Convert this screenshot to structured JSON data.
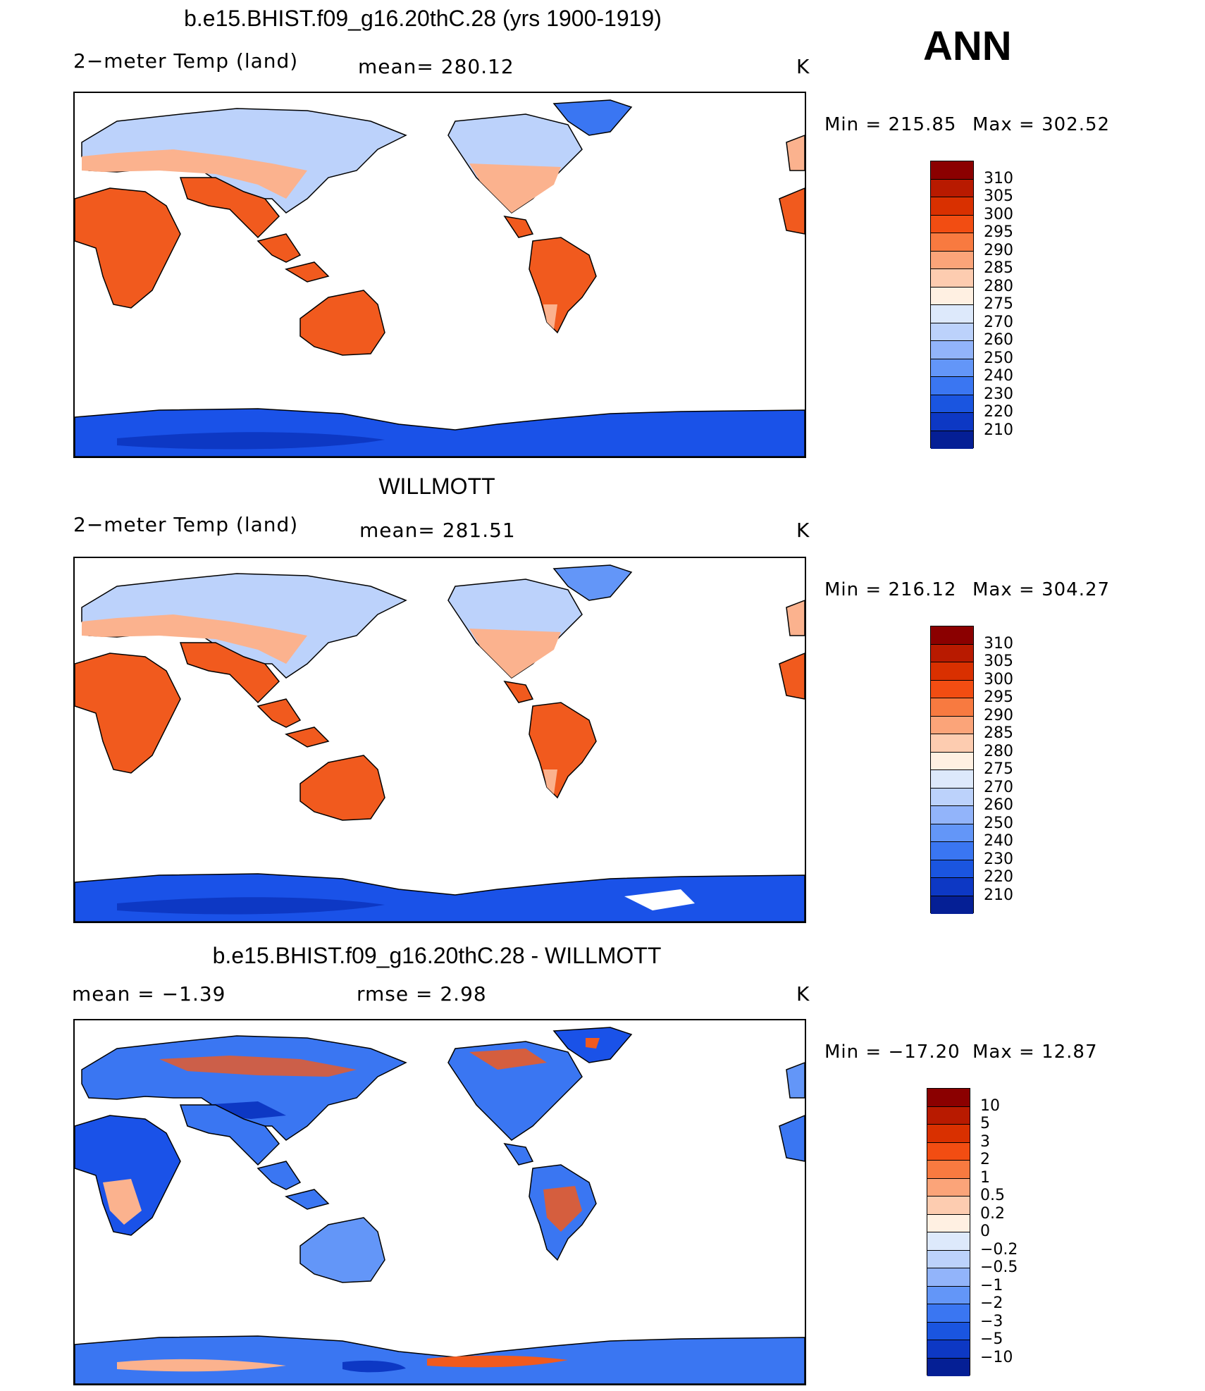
{
  "season": "ANN",
  "units_label": "K",
  "panel1": {
    "title": "b.e15.BHIST.f09_g16.20thC.28 (yrs 1900-1919)",
    "variable": "2−meter Temp (land)",
    "mean_text": "mean=  280.12",
    "min_text": "Min  =  215.85",
    "max_text": "Max  =  302.52",
    "colorbar_ticks": [
      "310",
      "305",
      "300",
      "295",
      "290",
      "285",
      "280",
      "275",
      "270",
      "260",
      "250",
      "240",
      "230",
      "220",
      "210"
    ],
    "colorbar_colors": [
      "#8b0000",
      "#b81a00",
      "#d93000",
      "#f24d12",
      "#f87a40",
      "#fba479",
      "#fdccb0",
      "#fff0e2",
      "#dde9fb",
      "#bcd2fb",
      "#92b4fa",
      "#6396f8",
      "#3a76f2",
      "#1a55e0",
      "#0d38c4",
      "#051f95"
    ]
  },
  "panel2": {
    "title": "WILLMOTT",
    "variable": "2−meter Temp (land)",
    "mean_text": "mean=  281.51",
    "min_text": "Min  =  216.12",
    "max_text": "Max  =  304.27",
    "colorbar_ticks": [
      "310",
      "305",
      "300",
      "295",
      "290",
      "285",
      "280",
      "275",
      "270",
      "260",
      "250",
      "240",
      "230",
      "220",
      "210"
    ],
    "colorbar_colors": [
      "#8b0000",
      "#b81a00",
      "#d93000",
      "#f24d12",
      "#f87a40",
      "#fba479",
      "#fdccb0",
      "#fff0e2",
      "#dde9fb",
      "#bcd2fb",
      "#92b4fa",
      "#6396f8",
      "#3a76f2",
      "#1a55e0",
      "#0d38c4",
      "#051f95"
    ]
  },
  "panel3": {
    "title": "b.e15.BHIST.f09_g16.20thC.28 - WILLMOTT",
    "mean_text": "mean  =     −1.39",
    "rmse_text": "rmse  =      2.98",
    "min_text": "Min  =  −17.20",
    "max_text": "Max  =     12.87",
    "colorbar_ticks": [
      "10",
      "5",
      "3",
      "2",
      "1",
      "0.5",
      "0.2",
      "0",
      "−0.2",
      "−0.5",
      "−1",
      "−2",
      "−3",
      "−5",
      "−10"
    ],
    "colorbar_colors": [
      "#8b0000",
      "#b81a00",
      "#d93000",
      "#f24d12",
      "#f87a40",
      "#fba479",
      "#fdccb0",
      "#fff0e2",
      "#dde9fb",
      "#bcd2fb",
      "#92b4fa",
      "#6396f8",
      "#3a76f2",
      "#1a55e0",
      "#0d38c4",
      "#051f95"
    ]
  },
  "colors": {
    "warm": "#f15a1e",
    "warm_light": "#fbb28e",
    "cold": "#1a52e8",
    "cold_light": "#bcd2fb",
    "polar": "#0d38c4"
  }
}
